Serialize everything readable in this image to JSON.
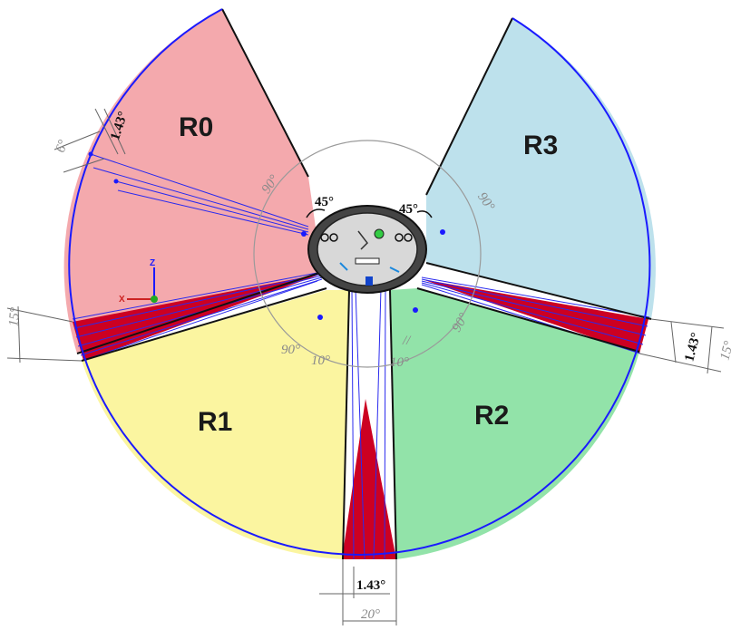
{
  "diagram": {
    "regions": [
      {
        "id": "R0",
        "label": "R0",
        "color": "#f4a9ad"
      },
      {
        "id": "R1",
        "label": "R1",
        "color": "#fbf5a0"
      },
      {
        "id": "R2",
        "label": "R2",
        "color": "#92e3a9"
      },
      {
        "id": "R3",
        "label": "R3",
        "color": "#bde1ec"
      }
    ],
    "beam_color": "#cc0022",
    "boundary_color": "#1a1aff",
    "angle_labels": {
      "a45_left": "45°",
      "a45_right": "45°",
      "a90_upper_left": "90°",
      "a90_upper_right": "90°",
      "a90_lower_left": "90°",
      "a90_lower_right": "90°",
      "a10_left": "10°",
      "a10_right": "10°",
      "a143_top": "1.43°",
      "a6_top": "6°",
      "a15_left": "15°",
      "a143_right": "1.43°",
      "a15_right": "15°",
      "a143_bottom": "1.43°",
      "a20_bottom": "20°",
      "parallel_mark": "//"
    },
    "axis_labels": {
      "z": "Z",
      "x": "X"
    }
  }
}
